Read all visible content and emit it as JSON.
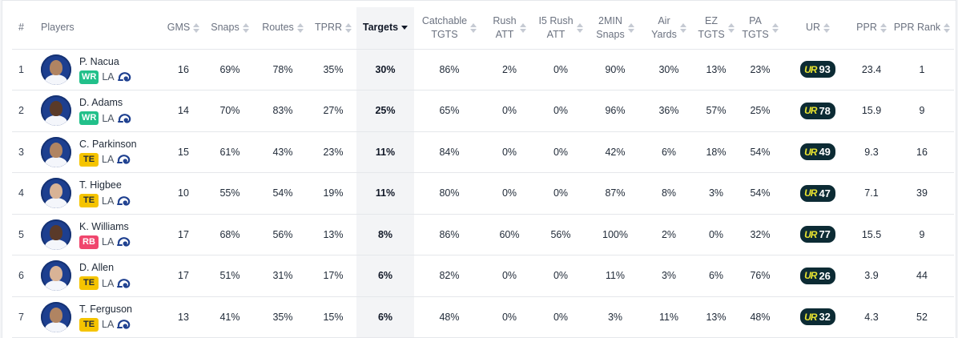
{
  "columns": [
    {
      "key": "rank",
      "label": [
        "#"
      ]
    },
    {
      "key": "players",
      "label": [
        "Players"
      ]
    },
    {
      "key": "gms",
      "label": [
        "GMS"
      ]
    },
    {
      "key": "snaps",
      "label": [
        "Snaps"
      ]
    },
    {
      "key": "routes",
      "label": [
        "Routes"
      ]
    },
    {
      "key": "tprr",
      "label": [
        "TPRR"
      ]
    },
    {
      "key": "targets",
      "label": [
        "Targets"
      ]
    },
    {
      "key": "catchable",
      "label": [
        "Catchable",
        "TGTS"
      ]
    },
    {
      "key": "rush_att",
      "label": [
        "Rush",
        "ATT"
      ]
    },
    {
      "key": "i5_rush_att",
      "label": [
        "I5 Rush",
        "ATT"
      ]
    },
    {
      "key": "two_min_snaps",
      "label": [
        "2MIN",
        "Snaps"
      ]
    },
    {
      "key": "air_yards",
      "label": [
        "Air",
        "Yards"
      ]
    },
    {
      "key": "ez_tgts",
      "label": [
        "EZ",
        "TGTS"
      ]
    },
    {
      "key": "pa_tgts",
      "label": [
        "PA",
        "TGTS"
      ]
    },
    {
      "key": "ur",
      "label": [
        "UR"
      ]
    },
    {
      "key": "ppr",
      "label": [
        "PPR"
      ]
    },
    {
      "key": "ppr_rank",
      "label": [
        "PPR Rank"
      ]
    }
  ],
  "sort": {
    "column": "targets",
    "direction": "desc"
  },
  "ur_logo": "UR",
  "colors": {
    "wr": "#22c08a",
    "te": "#f5c400",
    "rb": "#f0466d",
    "ur_badge": "#0c2b34",
    "ur_logo": "#e9e430",
    "team": "#1d3f8f"
  },
  "rows": [
    {
      "rank": "1",
      "name": "P. Nacua",
      "pos": "WR",
      "pos_class": "wr",
      "team": "LA",
      "avatar": "player-photo",
      "gms": "16",
      "snaps": "69%",
      "routes": "78%",
      "tprr": "35%",
      "targets": "30%",
      "catchable": "86%",
      "rush_att": "2%",
      "i5_rush_att": "0%",
      "two_min_snaps": "90%",
      "air_yards": "30%",
      "ez_tgts": "13%",
      "pa_tgts": "23%",
      "ur": "93",
      "ppr": "23.4",
      "ppr_rank": "1"
    },
    {
      "rank": "2",
      "name": "D. Adams",
      "pos": "WR",
      "pos_class": "wr",
      "team": "LA",
      "avatar": "player-photo",
      "gms": "14",
      "snaps": "70%",
      "routes": "83%",
      "tprr": "27%",
      "targets": "25%",
      "catchable": "65%",
      "rush_att": "0%",
      "i5_rush_att": "0%",
      "two_min_snaps": "96%",
      "air_yards": "36%",
      "ez_tgts": "57%",
      "pa_tgts": "25%",
      "ur": "78",
      "ppr": "15.9",
      "ppr_rank": "9"
    },
    {
      "rank": "3",
      "name": "C. Parkinson",
      "pos": "TE",
      "pos_class": "te",
      "team": "LA",
      "avatar": "player-photo",
      "gms": "15",
      "snaps": "61%",
      "routes": "43%",
      "tprr": "23%",
      "targets": "11%",
      "catchable": "84%",
      "rush_att": "0%",
      "i5_rush_att": "0%",
      "two_min_snaps": "42%",
      "air_yards": "6%",
      "ez_tgts": "18%",
      "pa_tgts": "54%",
      "ur": "49",
      "ppr": "9.3",
      "ppr_rank": "16"
    },
    {
      "rank": "4",
      "name": "T. Higbee",
      "pos": "TE",
      "pos_class": "te",
      "team": "LA",
      "avatar": "player-photo",
      "gms": "10",
      "snaps": "55%",
      "routes": "54%",
      "tprr": "19%",
      "targets": "11%",
      "catchable": "80%",
      "rush_att": "0%",
      "i5_rush_att": "0%",
      "two_min_snaps": "87%",
      "air_yards": "8%",
      "ez_tgts": "3%",
      "pa_tgts": "54%",
      "ur": "47",
      "ppr": "7.1",
      "ppr_rank": "39"
    },
    {
      "rank": "5",
      "name": "K. Williams",
      "pos": "RB",
      "pos_class": "rb",
      "team": "LA",
      "avatar": "player-photo",
      "gms": "17",
      "snaps": "68%",
      "routes": "56%",
      "tprr": "13%",
      "targets": "8%",
      "catchable": "86%",
      "rush_att": "60%",
      "i5_rush_att": "56%",
      "two_min_snaps": "100%",
      "air_yards": "2%",
      "ez_tgts": "0%",
      "pa_tgts": "32%",
      "ur": "77",
      "ppr": "15.5",
      "ppr_rank": "9"
    },
    {
      "rank": "6",
      "name": "D. Allen",
      "pos": "TE",
      "pos_class": "te",
      "team": "LA",
      "avatar": "player-photo",
      "gms": "17",
      "snaps": "51%",
      "routes": "31%",
      "tprr": "17%",
      "targets": "6%",
      "catchable": "82%",
      "rush_att": "0%",
      "i5_rush_att": "0%",
      "two_min_snaps": "11%",
      "air_yards": "3%",
      "ez_tgts": "6%",
      "pa_tgts": "76%",
      "ur": "26",
      "ppr": "3.9",
      "ppr_rank": "44"
    },
    {
      "rank": "7",
      "name": "T. Ferguson",
      "pos": "TE",
      "pos_class": "te",
      "team": "LA",
      "avatar": "player-photo",
      "gms": "13",
      "snaps": "41%",
      "routes": "35%",
      "tprr": "15%",
      "targets": "6%",
      "catchable": "48%",
      "rush_att": "0%",
      "i5_rush_att": "0%",
      "two_min_snaps": "3%",
      "air_yards": "11%",
      "ez_tgts": "13%",
      "pa_tgts": "48%",
      "ur": "32",
      "ppr": "4.3",
      "ppr_rank": "52"
    }
  ]
}
